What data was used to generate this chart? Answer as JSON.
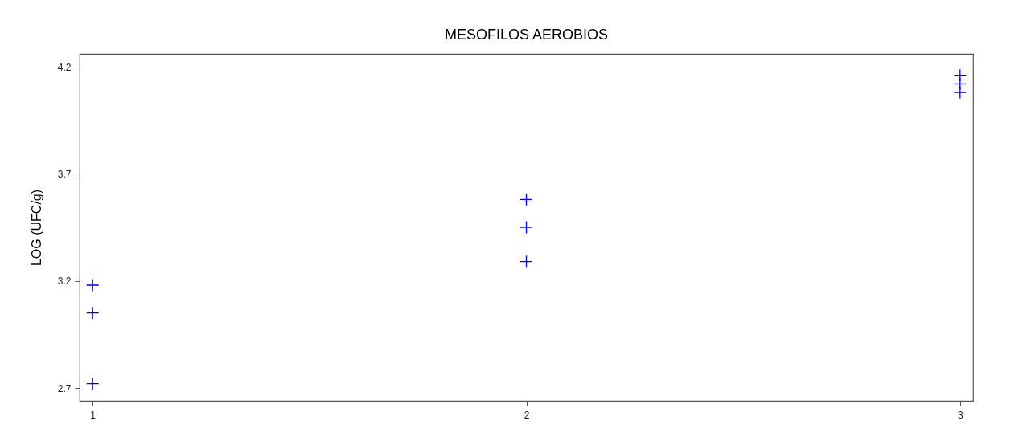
{
  "chart_data": {
    "type": "scatter",
    "title": "MESOFILOS AEROBIOS",
    "ylabel": "LOG (UFC/g)",
    "x": [
      1,
      1,
      1,
      2,
      2,
      2,
      3,
      3,
      3
    ],
    "series": [
      {
        "color": "#0000ff",
        "values": [
          3.18,
          3.05,
          2.72,
          3.58,
          3.45,
          3.29,
          4.16,
          4.12,
          4.08
        ]
      }
    ],
    "xlim": [
      0.97,
      3.03
    ],
    "xticks": [
      1,
      2,
      3
    ],
    "ylim": [
      2.64,
      4.26
    ],
    "yticks": [
      2.7,
      3.2,
      3.7,
      4.2
    ],
    "marker": "cross",
    "grid": false
  }
}
